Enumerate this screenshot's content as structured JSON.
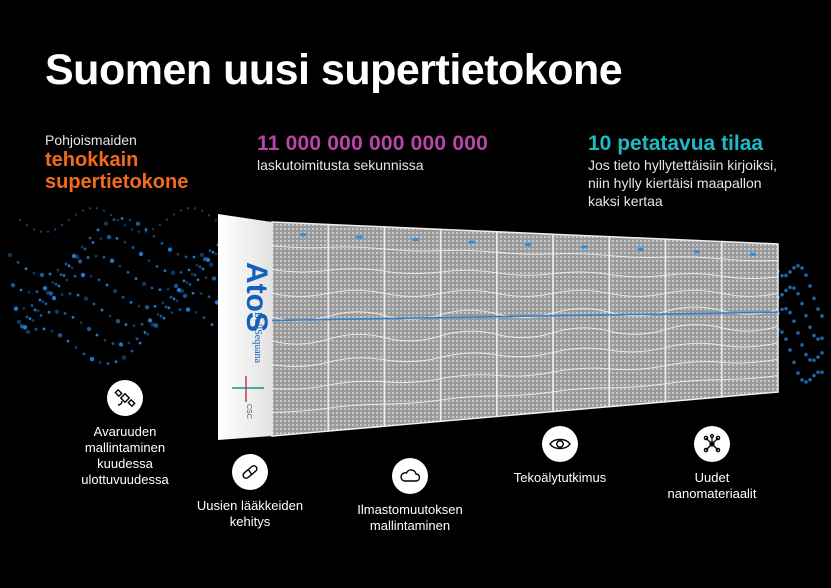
{
  "title": "Suomen uusi supertietokone",
  "stat1": {
    "line1": "Pohjoismaiden",
    "line2": "tehokkain",
    "line3": "supertietokone"
  },
  "stat2": {
    "value": "11 000 000 000 000 000",
    "caption": "laskutoimitusta sekunnissa"
  },
  "stat3": {
    "value": "10 petatavua tilaa",
    "line1": "Jos tieto hyllytettäisiin kirjoiksi,",
    "line2": "niin hylly kiertäisi maapallon",
    "line3": "kaksi kertaa"
  },
  "machine": {
    "brand": "AtoS",
    "subbrand": "BullSequana",
    "logo": "CSC"
  },
  "features": [
    {
      "icon": "satellite-icon",
      "lines": [
        "Avaruuden",
        "mallintaminen",
        "kuudessa",
        "ulottuvuudessa"
      ]
    },
    {
      "icon": "capsule-icon",
      "lines": [
        "Uusien lääkkeiden",
        "kehitys"
      ]
    },
    {
      "icon": "cloud-icon",
      "lines": [
        "Ilmastomuutoksen",
        "mallintaminen"
      ]
    },
    {
      "icon": "eye-icon",
      "lines": [
        "Tekoälytutkimus"
      ]
    },
    {
      "icon": "molecule-icon",
      "lines": [
        "Uudet",
        "nanomateriaalit"
      ]
    }
  ],
  "colors": {
    "orange": "#f26a1b",
    "purple": "#b845a8",
    "teal": "#1fb8c4",
    "dots": "#1e7fd8"
  }
}
